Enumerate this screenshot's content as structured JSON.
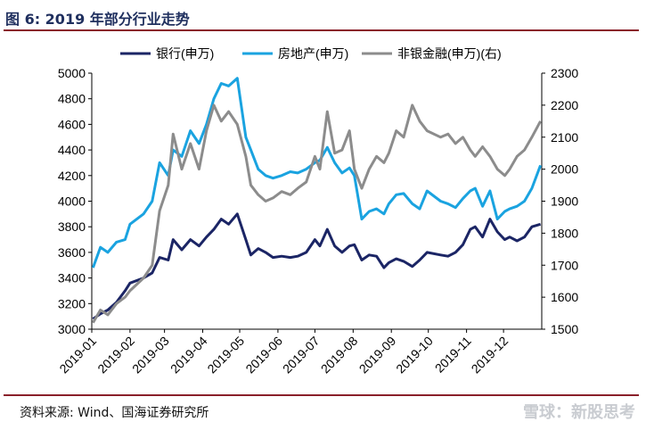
{
  "header": {
    "title": "图 6:  2019 年部分行业走势"
  },
  "footer": {
    "source": "资料来源:  Wind、国海证券研究所",
    "watermark": "雪球：新股思考"
  },
  "chart_data": {
    "type": "line",
    "title": "",
    "x_tick_labels": [
      "2019-01",
      "2019-02",
      "2019-03",
      "2019-04",
      "2019-05",
      "2019-06",
      "2019-07",
      "2019-08",
      "2019-09",
      "2019-10",
      "2019-11",
      "2019-12"
    ],
    "ylim_left": [
      3000,
      5000
    ],
    "ylim_right": [
      1500,
      2300
    ],
    "y_ticks_left": [
      3000,
      3200,
      3400,
      3600,
      3800,
      4000,
      4200,
      4400,
      4600,
      4800,
      5000
    ],
    "y_ticks_right": [
      1500,
      1600,
      1700,
      1800,
      1900,
      2000,
      2100,
      2200,
      2300
    ],
    "legend_position": "top",
    "grid": false,
    "series": [
      {
        "name": "银行(申万)",
        "axis": "left",
        "color": "#1b2565",
        "x": [
          "2019-01-02",
          "2019-01-08",
          "2019-01-14",
          "2019-01-21",
          "2019-01-28",
          "2019-02-01",
          "2019-02-12",
          "2019-02-19",
          "2019-02-25",
          "2019-03-04",
          "2019-03-08",
          "2019-03-15",
          "2019-03-22",
          "2019-03-29",
          "2019-04-04",
          "2019-04-10",
          "2019-04-16",
          "2019-04-22",
          "2019-04-29",
          "2019-05-06",
          "2019-05-10",
          "2019-05-16",
          "2019-05-22",
          "2019-05-28",
          "2019-06-04",
          "2019-06-11",
          "2019-06-17",
          "2019-06-24",
          "2019-07-01",
          "2019-07-05",
          "2019-07-11",
          "2019-07-17",
          "2019-07-23",
          "2019-07-29",
          "2019-08-02",
          "2019-08-08",
          "2019-08-14",
          "2019-08-20",
          "2019-08-26",
          "2019-08-30",
          "2019-09-05",
          "2019-09-11",
          "2019-09-18",
          "2019-09-24",
          "2019-09-30",
          "2019-10-11",
          "2019-10-17",
          "2019-10-23",
          "2019-10-29",
          "2019-11-04",
          "2019-11-08",
          "2019-11-14",
          "2019-11-20",
          "2019-11-26",
          "2019-12-02",
          "2019-12-06",
          "2019-12-12",
          "2019-12-18",
          "2019-12-24",
          "2019-12-31"
        ],
        "values": [
          3080,
          3120,
          3150,
          3210,
          3300,
          3360,
          3400,
          3440,
          3560,
          3540,
          3700,
          3620,
          3700,
          3650,
          3720,
          3780,
          3860,
          3820,
          3900,
          3700,
          3580,
          3630,
          3600,
          3560,
          3570,
          3560,
          3570,
          3600,
          3700,
          3650,
          3780,
          3650,
          3600,
          3650,
          3660,
          3540,
          3580,
          3570,
          3480,
          3520,
          3550,
          3530,
          3490,
          3540,
          3600,
          3580,
          3570,
          3600,
          3660,
          3780,
          3800,
          3720,
          3860,
          3760,
          3700,
          3720,
          3690,
          3720,
          3800,
          3820
        ]
      },
      {
        "name": "房地产(申万)",
        "axis": "left",
        "color": "#1aa3e0",
        "x": [
          "2019-01-02",
          "2019-01-08",
          "2019-01-14",
          "2019-01-21",
          "2019-01-28",
          "2019-02-01",
          "2019-02-12",
          "2019-02-19",
          "2019-02-25",
          "2019-03-04",
          "2019-03-08",
          "2019-03-15",
          "2019-03-22",
          "2019-03-29",
          "2019-04-04",
          "2019-04-10",
          "2019-04-16",
          "2019-04-22",
          "2019-04-29",
          "2019-05-06",
          "2019-05-10",
          "2019-05-16",
          "2019-05-22",
          "2019-05-28",
          "2019-06-04",
          "2019-06-11",
          "2019-06-17",
          "2019-06-24",
          "2019-07-01",
          "2019-07-05",
          "2019-07-11",
          "2019-07-17",
          "2019-07-23",
          "2019-07-29",
          "2019-08-02",
          "2019-08-08",
          "2019-08-14",
          "2019-08-20",
          "2019-08-26",
          "2019-08-30",
          "2019-09-05",
          "2019-09-11",
          "2019-09-18",
          "2019-09-24",
          "2019-09-30",
          "2019-10-11",
          "2019-10-17",
          "2019-10-23",
          "2019-10-29",
          "2019-11-04",
          "2019-11-08",
          "2019-11-14",
          "2019-11-20",
          "2019-11-26",
          "2019-12-02",
          "2019-12-06",
          "2019-12-12",
          "2019-12-18",
          "2019-12-24",
          "2019-12-31"
        ],
        "values": [
          3480,
          3640,
          3600,
          3680,
          3700,
          3820,
          3900,
          4000,
          4300,
          4200,
          4400,
          4350,
          4550,
          4450,
          4600,
          4800,
          4920,
          4900,
          4960,
          4500,
          4400,
          4250,
          4200,
          4180,
          4200,
          4230,
          4220,
          4250,
          4300,
          4320,
          4420,
          4300,
          4220,
          4260,
          4200,
          3860,
          3920,
          3940,
          3900,
          3980,
          4050,
          4060,
          3980,
          3940,
          4080,
          4000,
          3980,
          3950,
          4020,
          4080,
          4100,
          3960,
          4080,
          3860,
          3920,
          3940,
          3960,
          4000,
          4100,
          4280
        ]
      },
      {
        "name": "非银金融(申万)(右)",
        "axis": "right",
        "color": "#8c8c8c",
        "x": [
          "2019-01-02",
          "2019-01-08",
          "2019-01-14",
          "2019-01-21",
          "2019-01-28",
          "2019-02-01",
          "2019-02-12",
          "2019-02-19",
          "2019-02-25",
          "2019-03-04",
          "2019-03-08",
          "2019-03-15",
          "2019-03-22",
          "2019-03-29",
          "2019-04-04",
          "2019-04-10",
          "2019-04-16",
          "2019-04-22",
          "2019-04-29",
          "2019-05-06",
          "2019-05-10",
          "2019-05-16",
          "2019-05-22",
          "2019-05-28",
          "2019-06-04",
          "2019-06-11",
          "2019-06-17",
          "2019-06-24",
          "2019-07-01",
          "2019-07-05",
          "2019-07-11",
          "2019-07-17",
          "2019-07-23",
          "2019-07-29",
          "2019-08-02",
          "2019-08-08",
          "2019-08-14",
          "2019-08-20",
          "2019-08-26",
          "2019-08-30",
          "2019-09-05",
          "2019-09-11",
          "2019-09-18",
          "2019-09-24",
          "2019-09-30",
          "2019-10-11",
          "2019-10-17",
          "2019-10-23",
          "2019-10-29",
          "2019-11-04",
          "2019-11-08",
          "2019-11-14",
          "2019-11-20",
          "2019-11-26",
          "2019-12-02",
          "2019-12-06",
          "2019-12-12",
          "2019-12-18",
          "2019-12-24",
          "2019-12-31"
        ],
        "values": [
          1520,
          1560,
          1545,
          1580,
          1600,
          1620,
          1660,
          1700,
          1870,
          1950,
          2110,
          2000,
          2080,
          2000,
          2120,
          2200,
          2150,
          2180,
          2140,
          2040,
          1950,
          1920,
          1900,
          1910,
          1930,
          1920,
          1940,
          1960,
          2040,
          2000,
          2180,
          2050,
          2060,
          2120,
          2000,
          1940,
          2000,
          2040,
          2020,
          2050,
          2120,
          2100,
          2200,
          2150,
          2120,
          2100,
          2110,
          2080,
          2100,
          2060,
          2040,
          2070,
          2040,
          2000,
          1980,
          2000,
          2040,
          2060,
          2100,
          2150
        ]
      }
    ]
  }
}
